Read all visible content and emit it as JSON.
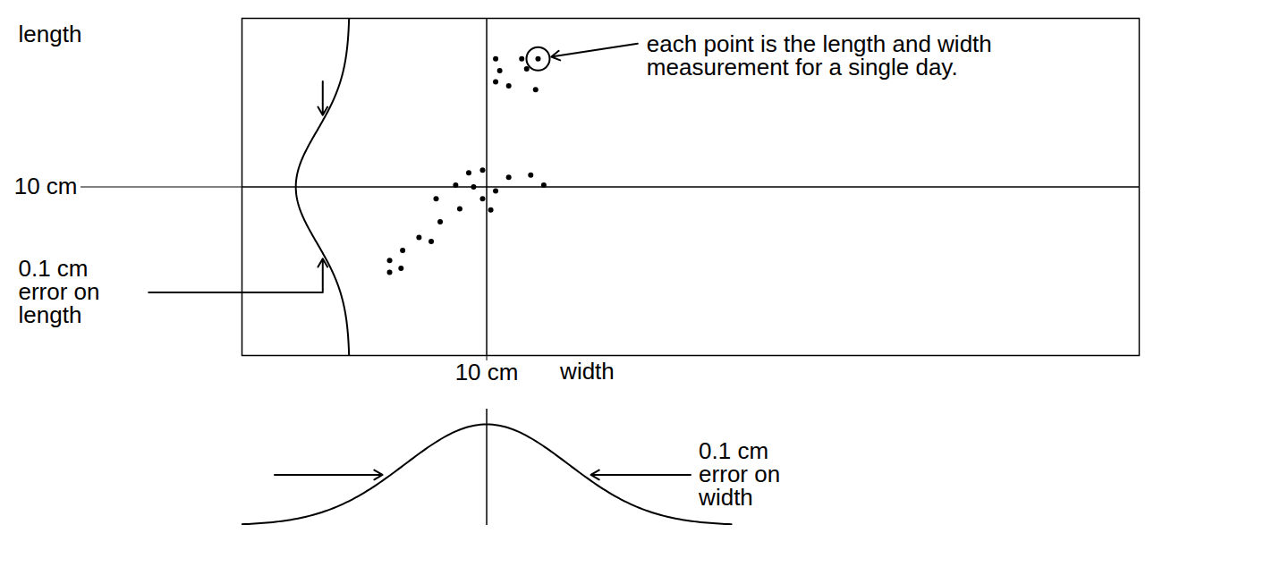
{
  "chart_data": {
    "type": "scatter",
    "x_label": "width",
    "y_label": "length",
    "xlim": [
      9.7,
      10.8
    ],
    "ylim": [
      9.7,
      10.3
    ],
    "xticks": [
      {
        "value": 10,
        "label": "10 cm"
      }
    ],
    "yticks": [
      {
        "value": 10,
        "label": "10 cm"
      }
    ],
    "grid": true,
    "color": "#000000",
    "marker": "circle",
    "x": [
      10.011,
      10.016,
      10.043,
      10.049,
      10.063,
      10.011,
      10.027,
      10.06,
      9.978,
      9.995,
      10.027,
      10.054,
      10.07,
      9.962,
      9.984,
      10.011,
      9.938,
      9.995,
      9.967,
      10.005,
      9.943,
      9.917,
      9.932,
      9.897,
      9.881,
      9.895,
      9.881
    ],
    "values": [
      10.228,
      10.207,
      10.228,
      10.21,
      10.228,
      10.187,
      10.18,
      10.173,
      10.025,
      10.03,
      10.017,
      10.021,
      10.003,
      10.003,
      10.0,
      9.993,
      9.979,
      9.979,
      9.961,
      9.959,
      9.938,
      9.91,
      9.903,
      9.887,
      9.869,
      9.855,
      9.848
    ],
    "annotation": "each point is the length and width measurement for a single day.",
    "y_error": 0.1,
    "y_error_label": "0.1 cm error on length",
    "x_error": 0.1,
    "x_error_label": "0.1 cm error on width"
  }
}
